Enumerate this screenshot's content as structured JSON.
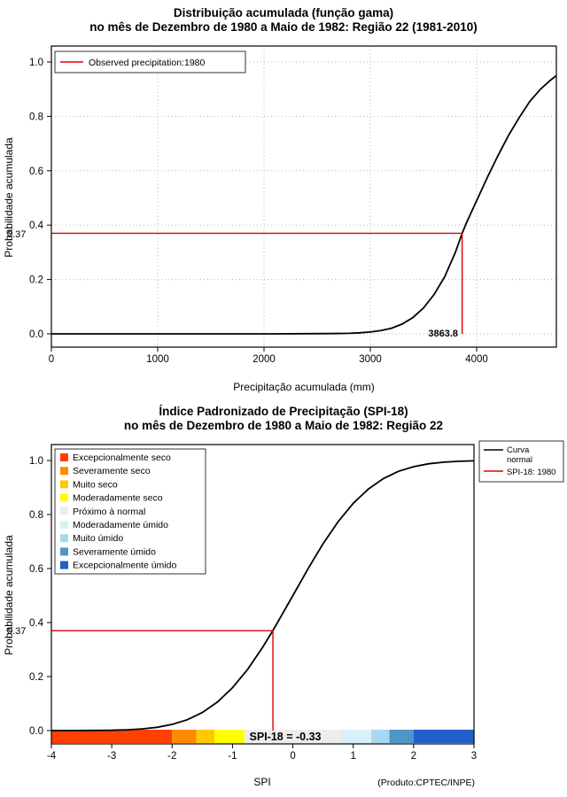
{
  "chart_data": [
    {
      "type": "line",
      "title": "Distribuição acumulada (função gama)",
      "subtitle": "no mês de Dezembro de 1980 a Maio de 1982: Região 22 (1981-2010)",
      "xlabel": "Precipitação acumulada (mm)",
      "ylabel": "Probabilidade acumulada",
      "xlim": [
        0,
        4750
      ],
      "ylim": [
        0,
        1
      ],
      "xticks": [
        "0",
        "1000",
        "2000",
        "3000",
        "4000"
      ],
      "yticks": [
        "0.0",
        "0.2",
        "0.4",
        "0.6",
        "0.8",
        "1.0"
      ],
      "grid": true,
      "legend": [
        {
          "name": "Observed precipitation:1980",
          "color": "#E00000"
        }
      ],
      "series": [
        {
          "name": "Gamma CDF",
          "color": "#000000",
          "x": [
            0,
            300,
            600,
            900,
            1200,
            1500,
            1800,
            2100,
            2400,
            2600,
            2800,
            2900,
            3000,
            3100,
            3200,
            3300,
            3400,
            3500,
            3600,
            3700,
            3800,
            3863.8,
            3900,
            4000,
            4100,
            4200,
            4300,
            4400,
            4500,
            4600,
            4700,
            4750
          ],
          "y": [
            0,
            0,
            0,
            0,
            0,
            0,
            0,
            0,
            0.0005,
            0.001,
            0.002,
            0.004,
            0.007,
            0.012,
            0.021,
            0.036,
            0.06,
            0.095,
            0.145,
            0.21,
            0.3,
            0.37,
            0.405,
            0.49,
            0.575,
            0.655,
            0.73,
            0.795,
            0.855,
            0.9,
            0.935,
            0.95
          ]
        }
      ],
      "annotation": {
        "observed_x": 3863.8,
        "probability": 0.37,
        "x_label": "3863.8",
        "prob_label": "0.37",
        "color": "#E00000"
      }
    },
    {
      "type": "line",
      "title": "Índice Padronizado de Precipitação (SPI-18)",
      "subtitle": "no mês de Dezembro de 1980 a Maio de 1982: Região 22",
      "xlabel": "SPI",
      "ylabel": "Probabilidade acumulada",
      "footer": "(Produto:CPTEC/INPE)",
      "xlim": [
        -4,
        3
      ],
      "ylim": [
        0,
        1
      ],
      "xticks": [
        "-4",
        "-3",
        "-2",
        "-1",
        "0",
        "1",
        "2",
        "3"
      ],
      "yticks": [
        "0.0",
        "0.2",
        "0.4",
        "0.6",
        "0.8",
        "1.0"
      ],
      "grid": false,
      "legend_right": [
        {
          "name_lines": [
            "Curva",
            "normal"
          ],
          "color": "#000000"
        },
        {
          "name_lines": [
            "SPI-18: 1980"
          ],
          "color": "#E00000"
        }
      ],
      "legend_classes": [
        {
          "label": "Excepcionalmente seco",
          "color": "#FF4000"
        },
        {
          "label": "Severamente seco",
          "color": "#FF8C00"
        },
        {
          "label": "Muito seco",
          "color": "#FFC800"
        },
        {
          "label": "Moderadamente seco",
          "color": "#FFFF00"
        },
        {
          "label": "Próximo à normal",
          "color": "#EDEDED"
        },
        {
          "label": "Moderadamente úmido",
          "color": "#D8F0FA"
        },
        {
          "label": "Muito úmido",
          "color": "#A8D8F0"
        },
        {
          "label": "Severamente úmido",
          "color": "#4E96C8"
        },
        {
          "label": "Excepcionalmente úmido",
          "color": "#2060C8"
        }
      ],
      "colorbar_segments": [
        {
          "from": -4,
          "to": -2,
          "color": "#FF4000"
        },
        {
          "from": -2,
          "to": -1.6,
          "color": "#FF8C00"
        },
        {
          "from": -1.6,
          "to": -1.3,
          "color": "#FFC800"
        },
        {
          "from": -1.3,
          "to": -0.8,
          "color": "#FFFF00"
        },
        {
          "from": -0.8,
          "to": 0.8,
          "color": "#EDEDED"
        },
        {
          "from": 0.8,
          "to": 1.3,
          "color": "#D8F0FA"
        },
        {
          "from": 1.3,
          "to": 1.6,
          "color": "#A8D8F0"
        },
        {
          "from": 1.6,
          "to": 2,
          "color": "#4E96C8"
        },
        {
          "from": 2,
          "to": 3,
          "color": "#2060C8"
        }
      ],
      "series": [
        {
          "name": "Curva normal",
          "color": "#000000",
          "x": [
            -4,
            -3.75,
            -3.5,
            -3.25,
            -3,
            -2.75,
            -2.5,
            -2.25,
            -2,
            -1.75,
            -1.5,
            -1.25,
            -1,
            -0.75,
            -0.5,
            -0.33,
            -0.25,
            0,
            0.25,
            0.5,
            0.75,
            1,
            1.25,
            1.5,
            1.75,
            2,
            2.25,
            2.5,
            2.75,
            3
          ],
          "y": [
            3e-05,
            9e-05,
            0.00023,
            0.00058,
            0.00135,
            0.003,
            0.0062,
            0.0122,
            0.0228,
            0.0401,
            0.0668,
            0.1056,
            0.1587,
            0.2266,
            0.3085,
            0.3707,
            0.4013,
            0.5,
            0.5987,
            0.6915,
            0.7734,
            0.8413,
            0.8944,
            0.9332,
            0.9599,
            0.9772,
            0.9878,
            0.9938,
            0.997,
            0.9987
          ]
        }
      ],
      "annotation": {
        "spi_x": -0.33,
        "probability": 0.37,
        "label": "SPI-18 = -0.33",
        "prob_label": "0.37",
        "color": "#E00000",
        "label_color": "#FFE800"
      }
    }
  ]
}
